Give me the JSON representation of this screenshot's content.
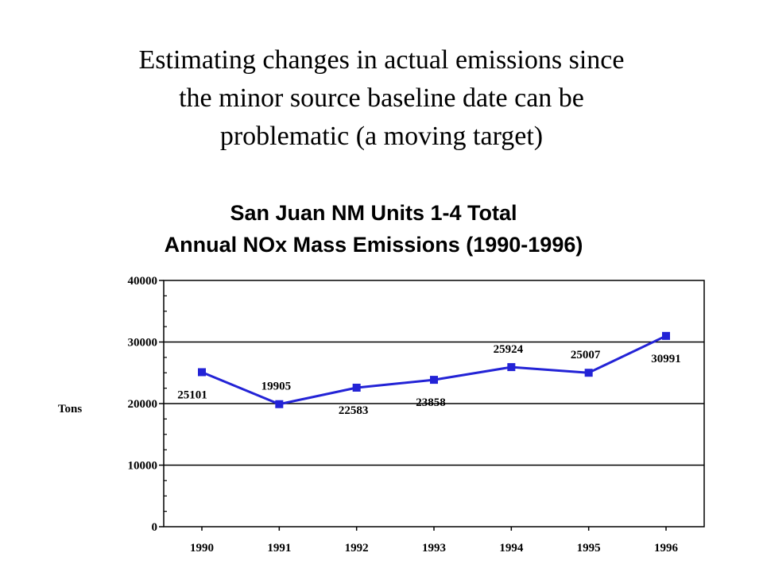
{
  "slide": {
    "title_lines": [
      "Estimating changes in actual emissions since",
      "the minor source baseline date can be",
      "problematic (a moving target)"
    ]
  },
  "chart_data": {
    "type": "line",
    "title_lines": [
      "San Juan NM Units 1-4 Total",
      "Annual NOx Mass Emissions (1990-1996)"
    ],
    "xlabel": "",
    "ylabel": "Tons",
    "categories": [
      "1990",
      "1991",
      "1992",
      "1993",
      "1994",
      "1995",
      "1996"
    ],
    "series": [
      {
        "values": [
          25101,
          19905,
          22583,
          23858,
          25924,
          25007,
          30991
        ],
        "data_labels": [
          "25101",
          "19905",
          "22583",
          "23858",
          "25924",
          "25007",
          "30991"
        ]
      }
    ],
    "ylim": [
      0,
      40000
    ],
    "yticks": [
      0,
      10000,
      20000,
      30000,
      40000
    ],
    "ytick_labels": [
      "0",
      "10000",
      "20000",
      "30000",
      "40000"
    ],
    "grid": true,
    "line_color": "#2323d6",
    "marker": "square"
  }
}
